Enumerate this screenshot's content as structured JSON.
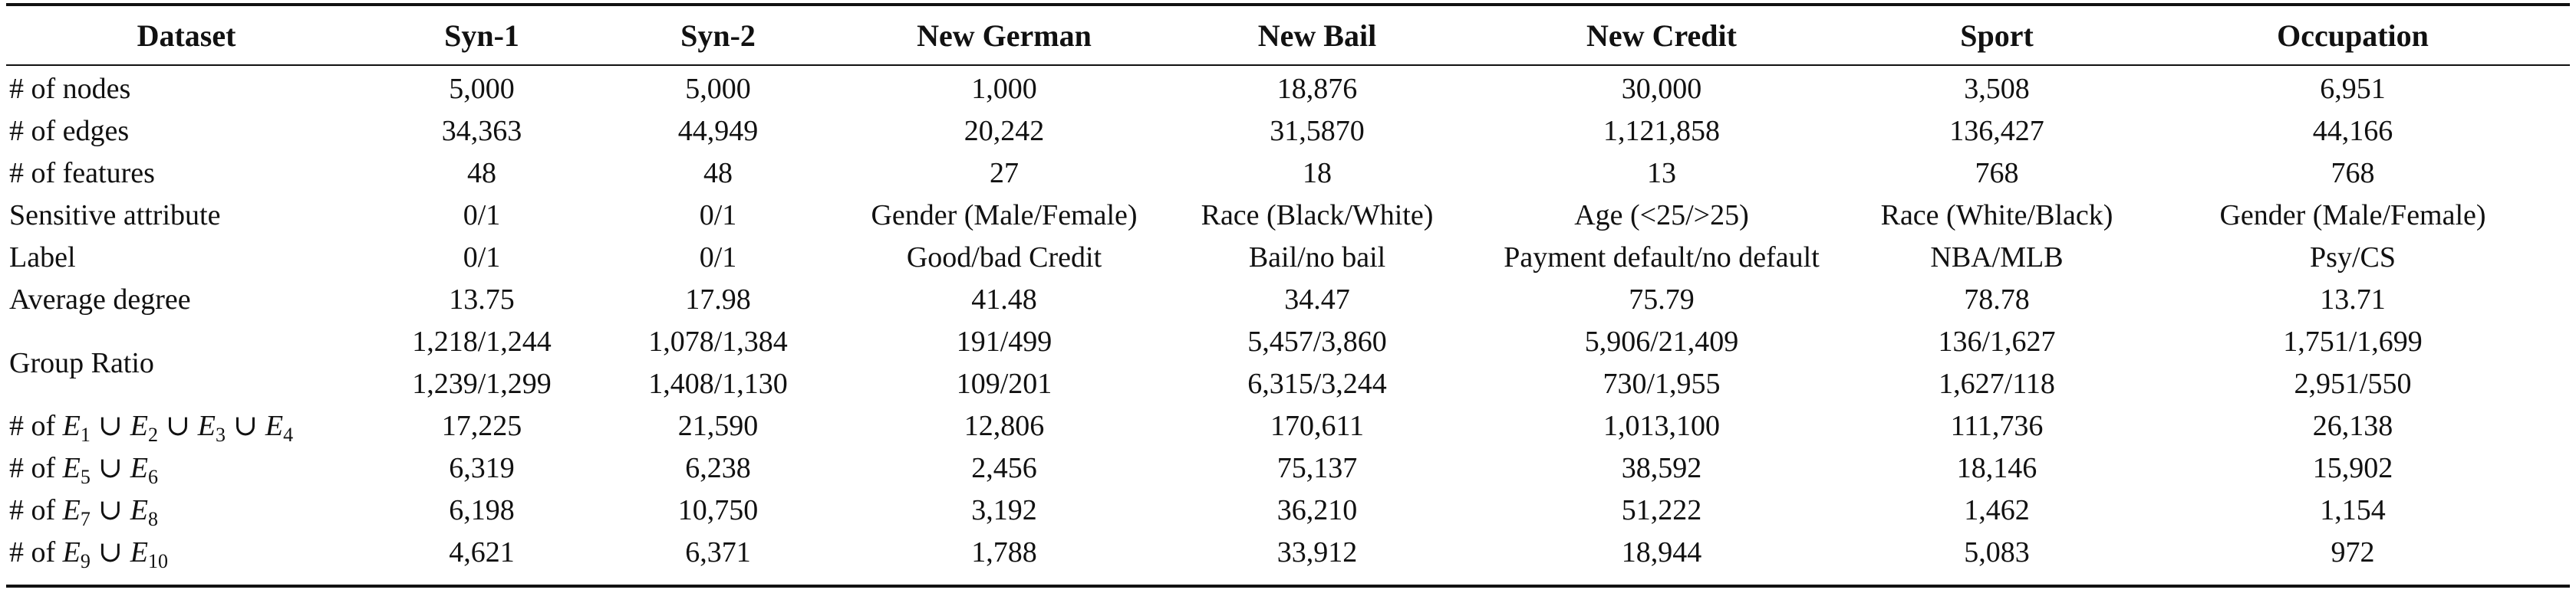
{
  "table": {
    "headers": [
      "Dataset",
      "Syn-1",
      "Syn-2",
      "New German",
      "New Bail",
      "New Credit",
      "Sport",
      "Occupation"
    ],
    "rows": [
      {
        "label": "# of nodes",
        "cells": [
          "5,000",
          "5,000",
          "1,000",
          "18,876",
          "30,000",
          "3,508",
          "6,951"
        ]
      },
      {
        "label": "# of edges",
        "cells": [
          "34,363",
          "44,949",
          "20,242",
          "31,5870",
          "1,121,858",
          "136,427",
          "44,166"
        ]
      },
      {
        "label": "# of features",
        "cells": [
          "48",
          "48",
          "27",
          "18",
          "13",
          "768",
          "768"
        ]
      },
      {
        "label": "Sensitive attribute",
        "cells": [
          "0/1",
          "0/1",
          "Gender (Male/Female)",
          "Race (Black/White)",
          "Age (<25/>25)",
          "Race (White/Black)",
          "Gender (Male/Female)"
        ]
      },
      {
        "label": "Label",
        "cells": [
          "0/1",
          "0/1",
          "Good/bad Credit",
          "Bail/no bail",
          "Payment default/no default",
          "NBA/MLB",
          "Psy/CS"
        ]
      },
      {
        "label": "Average degree",
        "cells": [
          "13.75",
          "17.98",
          "41.48",
          "34.47",
          "75.79",
          "78.78",
          "13.71"
        ]
      }
    ],
    "group_ratio": {
      "label": "Group Ratio",
      "line1": [
        "1,218/1,244",
        "1,078/1,384",
        "191/499",
        "5,457/3,860",
        "5,906/21,409",
        "136/1,627",
        "1,751/1,699"
      ],
      "line2": [
        "1,239/1,299",
        "1,408/1,130",
        "109/201",
        "6,315/3,244",
        "730/1,955",
        "1,627/118",
        "2,951/550"
      ]
    },
    "edge_rows": [
      {
        "prefix": "# of ",
        "terms": [
          [
            "E",
            "1"
          ],
          [
            "E",
            "2"
          ],
          [
            "E",
            "3"
          ],
          [
            "E",
            "4"
          ]
        ],
        "cells": [
          "17,225",
          "21,590",
          "12,806",
          "170,611",
          "1,013,100",
          "111,736",
          "26,138"
        ]
      },
      {
        "prefix": "# of ",
        "terms": [
          [
            "E",
            "5"
          ],
          [
            "E",
            "6"
          ]
        ],
        "cells": [
          "6,319",
          "6,238",
          "2,456",
          "75,137",
          "38,592",
          "18,146",
          "15,902"
        ]
      },
      {
        "prefix": "# of ",
        "terms": [
          [
            "E",
            "7"
          ],
          [
            "E",
            "8"
          ]
        ],
        "cells": [
          "6,198",
          "10,750",
          "3,192",
          "36,210",
          "51,222",
          "1,462",
          "1,154"
        ]
      },
      {
        "prefix": "# of ",
        "terms": [
          [
            "E",
            "9"
          ],
          [
            "E",
            "10"
          ]
        ],
        "cells": [
          "4,621",
          "6,371",
          "1,788",
          "33,912",
          "18,944",
          "5,083",
          "972"
        ]
      }
    ],
    "union_symbol": "∪"
  }
}
